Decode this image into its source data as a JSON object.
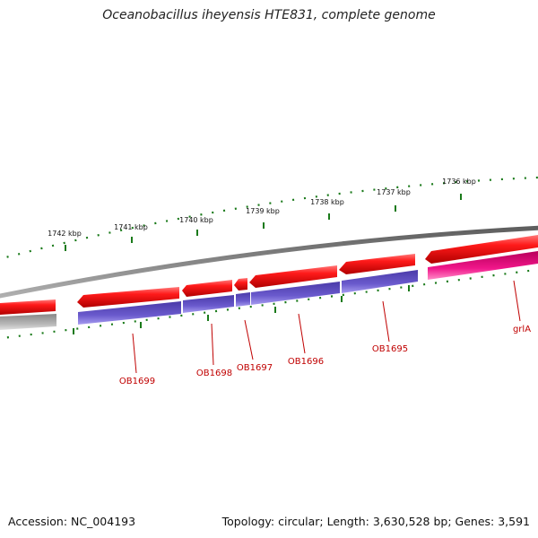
{
  "title": "Oceanobacillus iheyensis HTE831, complete genome",
  "footer": {
    "accession": "Accession: NC_004193",
    "summary": "Topology: circular; Length: 3,630,528 bp; Genes: 3,591"
  },
  "colors": {
    "forward_gene": "#e60000",
    "reverse_gene": "#6a5acd",
    "rna_gene": "#e0127c",
    "backbone": "#808080",
    "tick": "#1a7a1a",
    "label": "#c00000"
  },
  "scale_labels": [
    "1742 kbp",
    "1741 kbp",
    "1740 kbp",
    "1739 kbp",
    "1738 kbp",
    "1737 kbp",
    "1736 kbp"
  ],
  "genes": [
    {
      "label": "OB1699",
      "strand": "reverse"
    },
    {
      "label": "OB1698",
      "strand": "reverse"
    },
    {
      "label": "OB1697",
      "strand": "reverse"
    },
    {
      "label": "OB1696",
      "strand": "reverse"
    },
    {
      "label": "OB1695",
      "strand": "reverse"
    },
    {
      "label": "grlA",
      "strand": "rna"
    }
  ]
}
